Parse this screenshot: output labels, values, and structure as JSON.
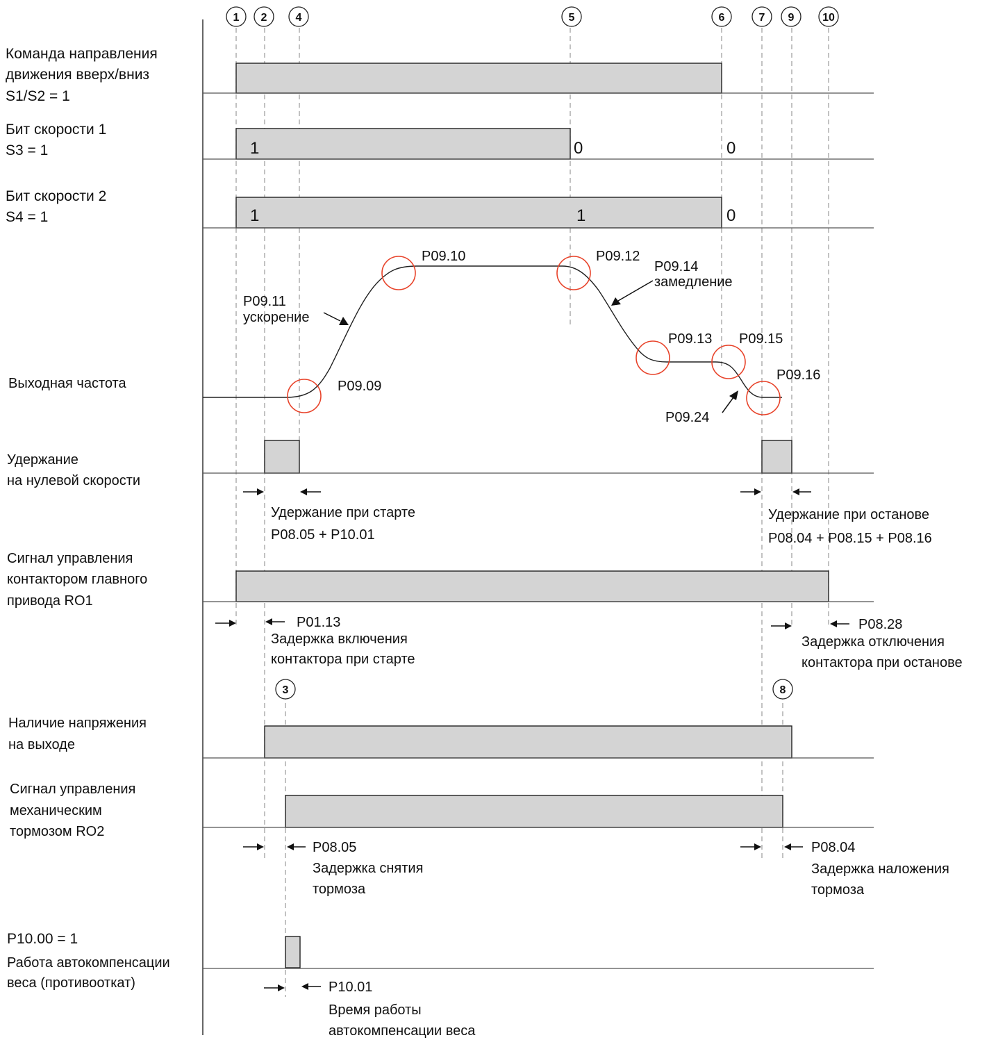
{
  "markers": [
    "1",
    "2",
    "4",
    "5",
    "6",
    "7",
    "9",
    "10"
  ],
  "markers_mid": [
    "3",
    "8"
  ],
  "signals": {
    "dir_cmd": [
      "Команда направления",
      "движения вверх/вниз",
      "S1/S2 = 1"
    ],
    "speed1": [
      "Бит скорости 1",
      "S3 = 1"
    ],
    "speed2": [
      "Бит скорости 2",
      "S4 = 1"
    ],
    "freq": "Выходная частота",
    "zero_hold": [
      "Удержание",
      "на нулевой скорости"
    ],
    "ro1": [
      "Сигнал управления",
      "контактором главного",
      "привода  RO1"
    ],
    "voltage": [
      "Наличие напряжения",
      "на выходе"
    ],
    "ro2": [
      "Сигнал управления",
      "механическим",
      "тормозом  RO2"
    ],
    "autocomp": [
      "P10.00 = 1",
      "Работа автокомпенсации",
      "веса (противооткат)"
    ]
  },
  "bits": {
    "s3": [
      "1",
      "0",
      "0"
    ],
    "s4": [
      "1",
      "1",
      "0"
    ]
  },
  "curve_labels": {
    "p0909": "P09.09",
    "p0910": "P09.10",
    "p0911": [
      "P09.11",
      "ускорение"
    ],
    "p0912": "P09.12",
    "p0913": "P09.13",
    "p0914": [
      "P09.14",
      "замедление"
    ],
    "p0915": "P09.15",
    "p0916": "P09.16",
    "p0924": "P09.24"
  },
  "annotations": {
    "start_hold": [
      "Удержание при старте",
      "P08.05 + P10.01"
    ],
    "stop_hold": [
      "Удержание при останове",
      "P08.04 + P08.15 + P08.16"
    ],
    "p0113": [
      "P01.13",
      "Задержка включения",
      "контактора при старте"
    ],
    "p0828": [
      "P08.28",
      "Задержка отключения",
      "контактора при останове"
    ],
    "p0805": [
      "P08.05",
      "Задержка снятия",
      "тормоза"
    ],
    "p0804": [
      "P08.04",
      "Задержка наложения",
      "тормоза"
    ],
    "p1001": [
      "P10.01",
      "Время работы",
      "автокомпенсации веса"
    ]
  }
}
